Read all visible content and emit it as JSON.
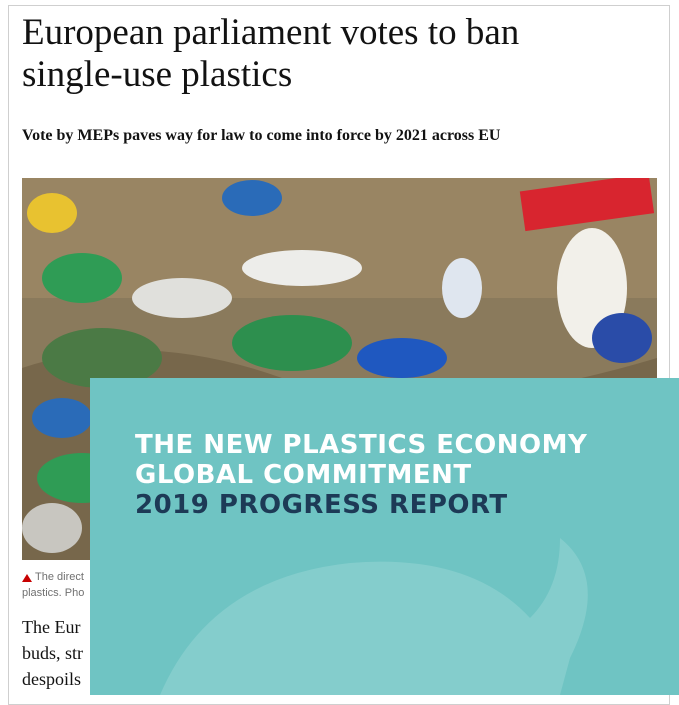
{
  "article": {
    "headline": "European parliament votes to ban single-use plastics",
    "standfirst": "Vote by MEPs paves way for law to come into force by 2021 across EU",
    "caption_lines": [
      "The direct",
      "plastics. Pho"
    ],
    "body_lines": [
      "The Eur",
      "buds, str",
      "despoils"
    ]
  },
  "cover": {
    "title_lines": [
      "THE NEW PLASTICS ECONOMY",
      "GLOBAL COMMITMENT"
    ],
    "subtitle": "2019 PROGRESS REPORT"
  }
}
